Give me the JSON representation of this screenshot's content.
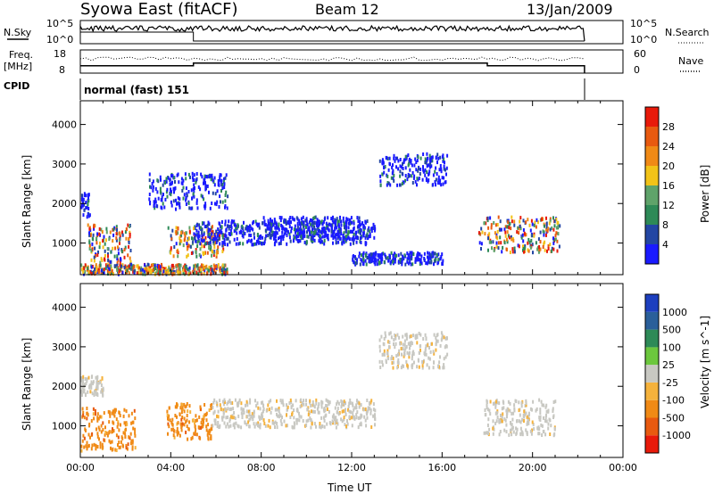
{
  "header": {
    "title": "Syowa East (fitACF)",
    "beam": "Beam 12",
    "date": "13/Jan/2009"
  },
  "panels": {
    "noise": {
      "left_label": "N.Sky",
      "right_label": "N.Search",
      "left_ticks": [
        "10^5",
        "10^0"
      ],
      "right_ticks": [
        "10^5",
        "10^0"
      ]
    },
    "freq": {
      "left_label_line1": "Freq.",
      "left_label_line2": "[MHz]",
      "right_label": "Nave",
      "left_ticks": [
        "18",
        "8"
      ],
      "right_ticks": [
        "60",
        "0"
      ]
    },
    "cpid": {
      "label": "CPID",
      "mode_text": "normal (fast) 151"
    }
  },
  "colors": {
    "power_scale": [
      "#1a1aff",
      "#2346a3",
      "#2e8a57",
      "#5fa36a",
      "#f2c318",
      "#f08a16",
      "#e85a10",
      "#e81a0a"
    ],
    "velocity_scale": [
      "#1d3fbf",
      "#2a5f9a",
      "#2e8a57",
      "#6cc73d",
      "#c8c8c2",
      "#f5b23c",
      "#f08a16",
      "#e85a10",
      "#e81a0a"
    ]
  },
  "chart_data": [
    {
      "type": "heatmap",
      "name_label": "power",
      "ylabel": "Slant Range [km]",
      "yticks": [
        "1000",
        "2000",
        "3000",
        "4000"
      ],
      "ylim": [
        200,
        4600
      ],
      "xlim_hours": [
        0,
        24
      ],
      "colorbar_label": "Power [dB]",
      "colorbar_ticks": [
        "4",
        "8",
        "12",
        "16",
        "20",
        "24",
        "28"
      ],
      "colorbar_range": [
        0,
        32
      ],
      "blobs": [
        {
          "t": [
            0.0,
            0.4
          ],
          "r": [
            1700,
            2300
          ],
          "level": "blue"
        },
        {
          "t": [
            0.3,
            2.2
          ],
          "r": [
            500,
            1500
          ],
          "level": "mixed"
        },
        {
          "t": [
            3.8,
            6.3
          ],
          "r": [
            700,
            1500
          ],
          "level": "mixed"
        },
        {
          "t": [
            5.0,
            13.0
          ],
          "r": [
            1000,
            1600
          ],
          "level": "blue"
        },
        {
          "t": [
            8.0,
            12.5
          ],
          "r": [
            1100,
            1700
          ],
          "level": "blue"
        },
        {
          "t": [
            12.0,
            16.0
          ],
          "r": [
            500,
            800
          ],
          "level": "blue"
        },
        {
          "t": [
            13.2,
            16.2
          ],
          "r": [
            2500,
            3300
          ],
          "level": "blue"
        },
        {
          "t": [
            17.6,
            21.2
          ],
          "r": [
            800,
            1700
          ],
          "level": "mixed"
        },
        {
          "t": [
            3.0,
            6.5
          ],
          "r": [
            1900,
            2800
          ],
          "level": "blue"
        },
        {
          "t": [
            0.0,
            6.5
          ],
          "r": [
            250,
            500
          ],
          "level": "mixed"
        }
      ]
    },
    {
      "type": "heatmap",
      "name_label": "velocity",
      "ylabel": "Slant Range [km]",
      "yticks": [
        "1000",
        "2000",
        "3000",
        "4000"
      ],
      "ylim": [
        200,
        4600
      ],
      "xlim_hours": [
        0,
        24
      ],
      "xticks": [
        "00:00",
        "04:00",
        "08:00",
        "12:00",
        "16:00",
        "20:00",
        "00:00"
      ],
      "xlabel": "Time UT",
      "colorbar_label": "Velocity [m s^-1]",
      "colorbar_ticks": [
        "1000",
        "500",
        "100",
        "25",
        "-25",
        "-100",
        "-500",
        "-1000"
      ],
      "blobs": [
        {
          "t": [
            0.0,
            2.4
          ],
          "r": [
            400,
            1500
          ],
          "level": "orange"
        },
        {
          "t": [
            3.8,
            5.8
          ],
          "r": [
            700,
            1600
          ],
          "level": "orange"
        },
        {
          "t": [
            5.8,
            13.0
          ],
          "r": [
            1000,
            1700
          ],
          "level": "grey"
        },
        {
          "t": [
            13.2,
            16.2
          ],
          "r": [
            2500,
            3400
          ],
          "level": "grey"
        },
        {
          "t": [
            17.8,
            21.0
          ],
          "r": [
            800,
            1700
          ],
          "level": "grey"
        },
        {
          "t": [
            0.0,
            1.0
          ],
          "r": [
            1800,
            2300
          ],
          "level": "grey"
        }
      ]
    },
    {
      "type": "line",
      "name_label": "noise",
      "x_hours": [
        0,
        0.2,
        1,
        2,
        3,
        4,
        5,
        5.05,
        6,
        8,
        10,
        12,
        14,
        16,
        18,
        20,
        21.5,
        22.3,
        22.35,
        24
      ],
      "sky_level": "high",
      "search_drop_hours": [
        5.0,
        22.3
      ]
    },
    {
      "type": "line",
      "name_label": "frequency",
      "x_hours": [
        0,
        5.0,
        5.0,
        18.0,
        18.0,
        22.3,
        22.3
      ],
      "freq_mhz": [
        11.2,
        11.2,
        12.3,
        12.3,
        11.2,
        11.2,
        8.0
      ],
      "xlim_hours": [
        0,
        24
      ]
    }
  ]
}
